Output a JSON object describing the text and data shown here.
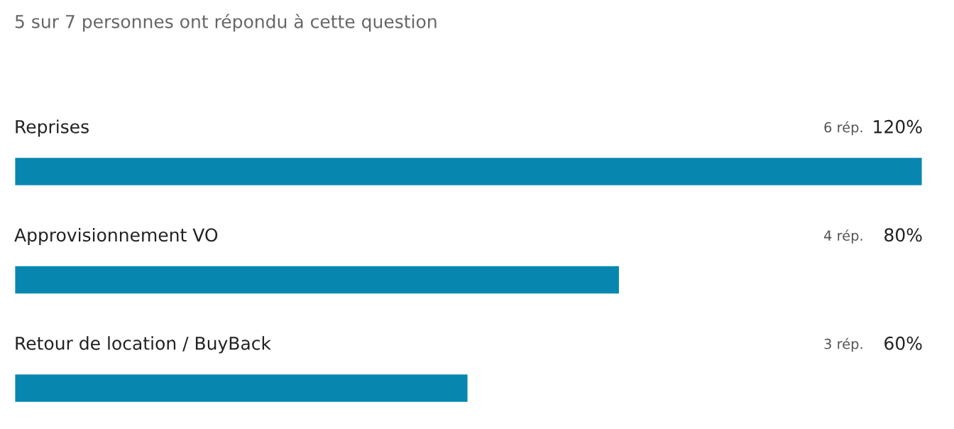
{
  "chart_data": {
    "type": "bar",
    "orientation": "horizontal",
    "title": "5 sur 7 personnes ont répondu à cette question",
    "categories": [
      "Reprises",
      "Approvisionnement VO",
      "Retour de location / BuyBack"
    ],
    "values": [
      120,
      80,
      60
    ],
    "color": "#0787b0",
    "value_labels": [
      "120%",
      "80%",
      "60%"
    ],
    "xlim": [
      0,
      120
    ],
    "annotations": [
      "6 rép.",
      "4 rép.",
      "3 rép."
    ]
  }
}
